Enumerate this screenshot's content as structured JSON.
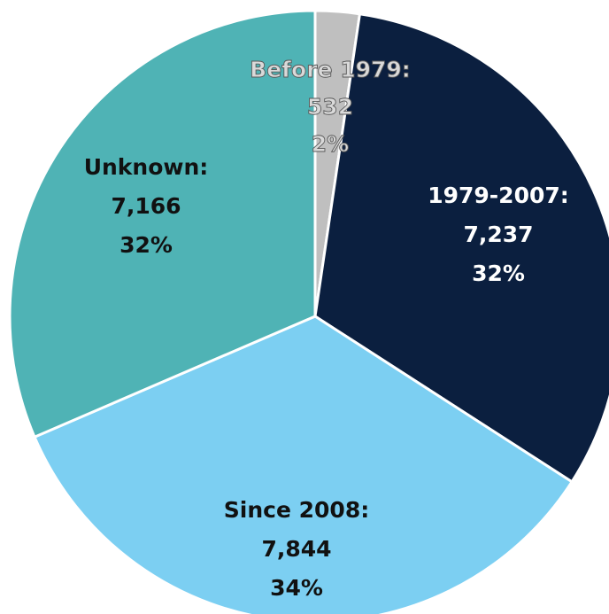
{
  "chart_data": {
    "type": "pie",
    "categories": [
      "Before 1979:",
      "1979-2007:",
      "Since 2008:",
      "Unknown:"
    ],
    "values": [
      532,
      7237,
      7844,
      7166
    ],
    "value_labels": [
      "532",
      "7,237",
      "7,844",
      "7,166"
    ],
    "percentages": [
      2,
      32,
      34,
      32
    ],
    "percentage_labels": [
      "2%",
      "32%",
      "34%",
      "32%"
    ],
    "colors": [
      "#bfbfbf",
      "#0b1f3f",
      "#7ccff2",
      "#4fb3b5"
    ]
  }
}
